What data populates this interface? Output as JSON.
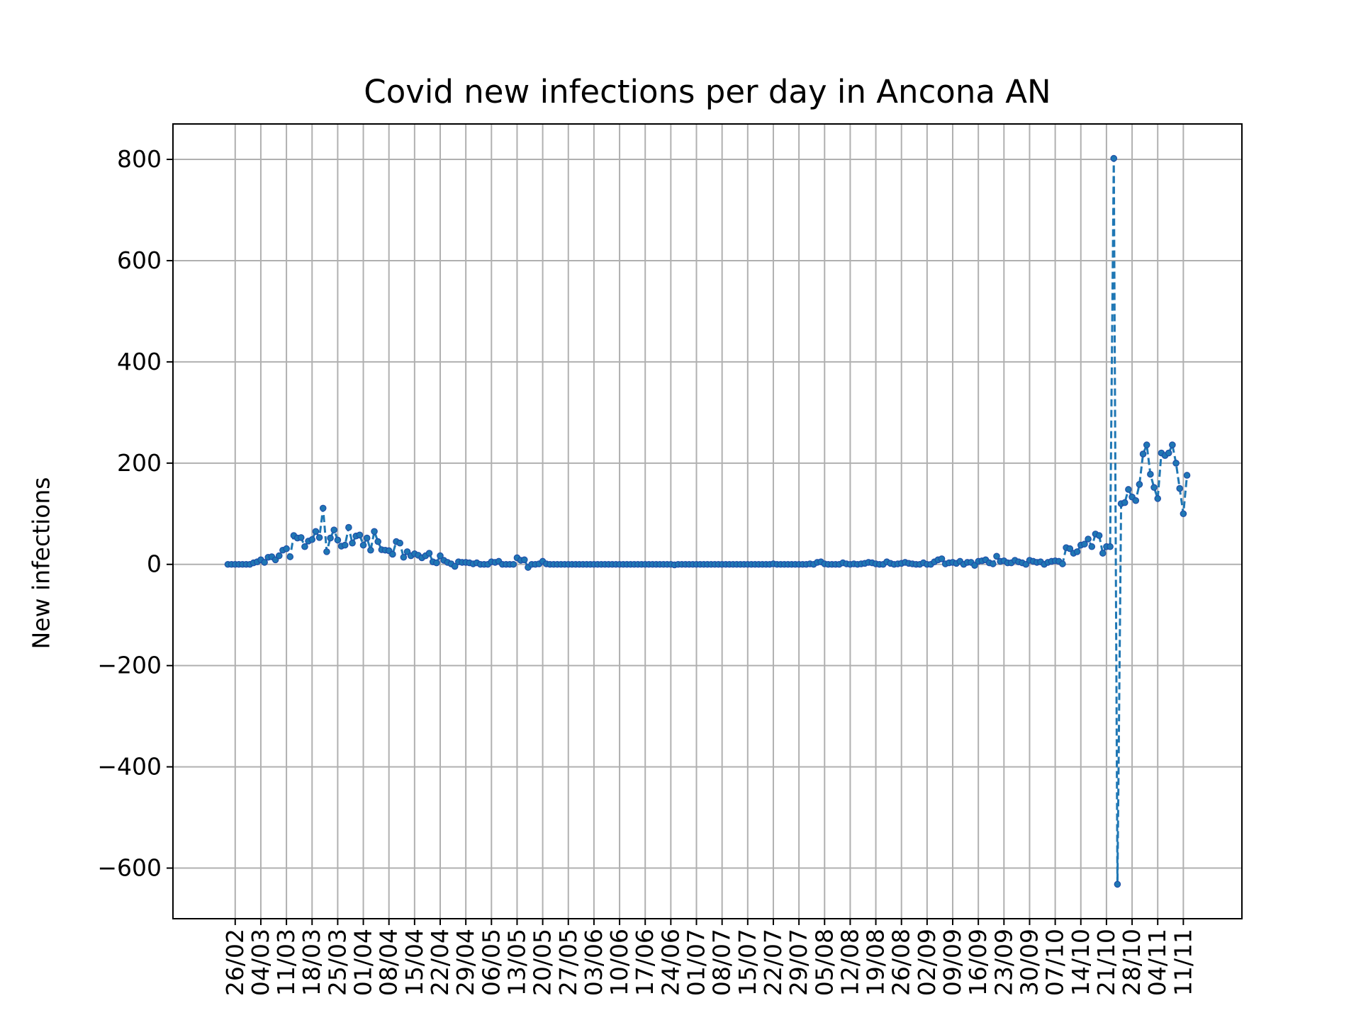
{
  "chart_data": {
    "type": "line",
    "title": "Covid new infections per day in Ancona AN",
    "xlabel": "",
    "ylabel": "New infections",
    "ylim": [
      -700,
      870
    ],
    "yticks": [
      -600,
      -400,
      -200,
      0,
      200,
      400,
      600,
      800
    ],
    "y_tick_labels": [
      "−600",
      "−400",
      "−200",
      "0",
      "200",
      "400",
      "600",
      "800"
    ],
    "x_tick_labels": [
      "26/02",
      "04/03",
      "11/03",
      "18/03",
      "25/03",
      "01/04",
      "08/04",
      "15/04",
      "22/04",
      "29/04",
      "06/05",
      "13/05",
      "20/05",
      "27/05",
      "03/06",
      "10/06",
      "17/06",
      "24/06",
      "01/07",
      "08/07",
      "15/07",
      "22/07",
      "29/07",
      "05/08",
      "12/08",
      "19/08",
      "26/08",
      "02/09",
      "09/09",
      "16/09",
      "23/09",
      "30/09",
      "07/10",
      "14/10",
      "21/10",
      "28/10",
      "04/11",
      "11/11"
    ],
    "grid": true,
    "line_style": "dashed",
    "marker": "circle",
    "colors": {
      "line": "#1f77b4",
      "marker_edge": "#1f4fa8"
    },
    "series": [
      {
        "x": [
          "24/02",
          "25/02",
          "26/02",
          "27/02",
          "28/02",
          "29/02",
          "01/03",
          "02/03",
          "03/03",
          "04/03",
          "05/03",
          "06/03",
          "07/03",
          "08/03",
          "09/03",
          "10/03",
          "11/03",
          "12/03",
          "13/03",
          "14/03",
          "15/03",
          "16/03",
          "17/03",
          "18/03",
          "19/03",
          "20/03",
          "21/03",
          "22/03",
          "23/03",
          "24/03",
          "25/03",
          "26/03",
          "27/03",
          "28/03",
          "29/03",
          "30/03",
          "31/03",
          "01/04",
          "02/04",
          "03/04",
          "04/04",
          "05/04",
          "06/04",
          "07/04",
          "08/04",
          "09/04",
          "10/04",
          "11/04",
          "12/04",
          "13/04",
          "14/04",
          "15/04",
          "16/04",
          "17/04",
          "18/04",
          "19/04",
          "20/04",
          "21/04",
          "22/04",
          "23/04",
          "24/04",
          "25/04",
          "26/04",
          "27/04",
          "28/04",
          "29/04",
          "30/04",
          "01/05",
          "02/05",
          "03/05",
          "04/05",
          "05/05",
          "06/05",
          "07/05",
          "08/05",
          "09/05",
          "10/05",
          "11/05",
          "12/05",
          "13/05",
          "14/05",
          "15/05",
          "16/05",
          "17/05",
          "18/05",
          "19/05",
          "20/05",
          "21/05",
          "22/05",
          "23/05",
          "24/05",
          "25/05",
          "26/05",
          "27/05",
          "28/05",
          "29/05",
          "30/05",
          "31/05",
          "01/06",
          "02/06",
          "03/06",
          "04/06",
          "05/06",
          "06/06",
          "07/06",
          "08/06",
          "09/06",
          "10/06",
          "11/06",
          "12/06",
          "13/06",
          "14/06",
          "15/06",
          "16/06",
          "17/06",
          "18/06",
          "19/06",
          "20/06",
          "21/06",
          "22/06",
          "23/06",
          "24/06",
          "25/06",
          "26/06",
          "27/06",
          "28/06",
          "29/06",
          "30/06",
          "01/07",
          "02/07",
          "03/07",
          "04/07",
          "05/07",
          "06/07",
          "07/07",
          "08/07",
          "09/07",
          "10/07",
          "11/07",
          "12/07",
          "13/07",
          "14/07",
          "15/07",
          "16/07",
          "17/07",
          "18/07",
          "19/07",
          "20/07",
          "21/07",
          "22/07",
          "23/07",
          "24/07",
          "25/07",
          "26/07",
          "27/07",
          "28/07",
          "29/07",
          "30/07",
          "31/07",
          "01/08",
          "02/08",
          "03/08",
          "04/08",
          "05/08",
          "06/08",
          "07/08",
          "08/08",
          "09/08",
          "10/08",
          "11/08",
          "12/08",
          "13/08",
          "14/08",
          "15/08",
          "16/08",
          "17/08",
          "18/08",
          "19/08",
          "20/08",
          "21/08",
          "22/08",
          "23/08",
          "24/08",
          "25/08",
          "26/08",
          "27/08",
          "28/08",
          "29/08",
          "30/08",
          "31/08",
          "01/09",
          "02/09",
          "03/09",
          "04/09",
          "05/09",
          "06/09",
          "07/09",
          "08/09",
          "09/09",
          "10/09",
          "11/09",
          "12/09",
          "13/09",
          "14/09",
          "15/09",
          "16/09",
          "17/09",
          "18/09",
          "19/09",
          "20/09",
          "21/09",
          "22/09",
          "23/09",
          "24/09",
          "25/09",
          "26/09",
          "27/09",
          "28/09",
          "29/09",
          "30/09",
          "01/10",
          "02/10",
          "03/10",
          "04/10",
          "05/10",
          "06/10",
          "07/10",
          "08/10",
          "09/10",
          "10/10",
          "11/10",
          "12/10",
          "13/10",
          "14/10",
          "15/10",
          "16/10",
          "17/10",
          "18/10",
          "19/10",
          "20/10",
          "21/10",
          "22/10",
          "23/10",
          "24/10",
          "25/10",
          "26/10",
          "27/10",
          "28/10",
          "29/10",
          "30/10",
          "31/10",
          "01/11",
          "02/11",
          "03/11",
          "04/11",
          "05/11",
          "06/11",
          "07/11",
          "08/11",
          "09/11",
          "10/11",
          "11/11",
          "12/11"
        ],
        "y": [
          0,
          0,
          0,
          0,
          0,
          0,
          0,
          3,
          5,
          9,
          4,
          14,
          15,
          9,
          17,
          28,
          31,
          15,
          57,
          52,
          53,
          35,
          46,
          49,
          65,
          53,
          111,
          25,
          52,
          68,
          48,
          36,
          38,
          73,
          42,
          56,
          58,
          38,
          52,
          28,
          65,
          45,
          29,
          28,
          27,
          20,
          45,
          42,
          14,
          25,
          17,
          21,
          18,
          13,
          17,
          22,
          5,
          3,
          17,
          8,
          4,
          1,
          -4,
          5,
          4,
          4,
          3,
          1,
          3,
          0,
          0,
          0,
          5,
          4,
          6,
          0,
          0,
          0,
          0,
          13,
          8,
          9,
          -6,
          0,
          0,
          1,
          6,
          1,
          0,
          0,
          0,
          0,
          0,
          0,
          0,
          0,
          0,
          0,
          0,
          0,
          0,
          0,
          0,
          0,
          0,
          0,
          0,
          0,
          0,
          0,
          0,
          0,
          0,
          0,
          0,
          0,
          0,
          0,
          0,
          0,
          0,
          0,
          -1,
          0,
          0,
          0,
          0,
          0,
          0,
          0,
          0,
          0,
          0,
          0,
          0,
          0,
          0,
          0,
          0,
          0,
          0,
          0,
          0,
          0,
          0,
          0,
          0,
          0,
          0,
          1,
          0,
          0,
          0,
          0,
          0,
          0,
          0,
          0,
          0,
          1,
          0,
          4,
          5,
          1,
          0,
          0,
          0,
          0,
          3,
          1,
          0,
          1,
          0,
          1,
          2,
          4,
          3,
          1,
          0,
          0,
          5,
          2,
          0,
          1,
          2,
          4,
          2,
          1,
          0,
          0,
          3,
          0,
          0,
          5,
          9,
          11,
          1,
          3,
          4,
          2,
          6,
          0,
          4,
          4,
          -2,
          6,
          7,
          9,
          3,
          1,
          16,
          6,
          7,
          3,
          3,
          8,
          5,
          3,
          0,
          8,
          6,
          4,
          5,
          0,
          4,
          6,
          7,
          6,
          1,
          33,
          31,
          22,
          25,
          38,
          40,
          50,
          35,
          60,
          57,
          22,
          35,
          35,
          802,
          -632,
          120,
          122,
          148,
          133,
          126,
          158,
          218,
          236,
          178,
          152,
          130,
          220,
          215,
          220,
          236,
          200,
          150,
          100,
          176
        ]
      }
    ]
  }
}
